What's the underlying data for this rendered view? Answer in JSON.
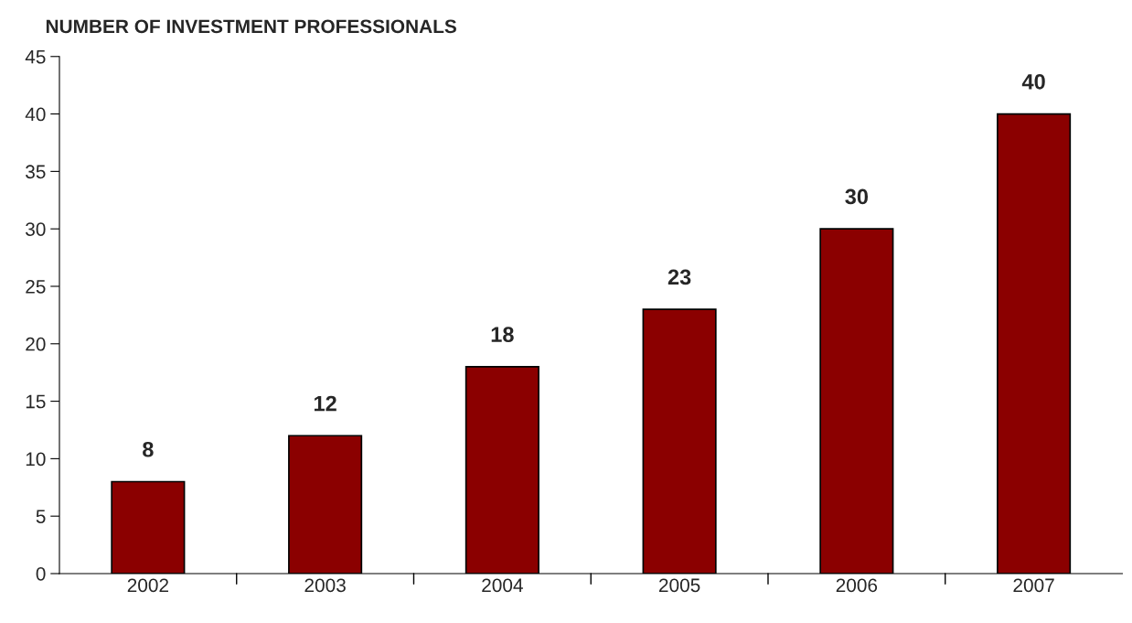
{
  "chart_data": {
    "type": "bar",
    "title": "NUMBER OF INVESTMENT PROFESSIONALS",
    "categories": [
      "2002",
      "2003",
      "2004",
      "2005",
      "2006",
      "2007"
    ],
    "values": [
      8,
      12,
      18,
      23,
      30,
      40
    ],
    "color": "#8b0000",
    "ylim": [
      0,
      45
    ],
    "yticks": [
      0,
      5,
      10,
      15,
      20,
      25,
      30,
      35,
      40,
      45
    ],
    "grid": false,
    "data_labels": true
  }
}
